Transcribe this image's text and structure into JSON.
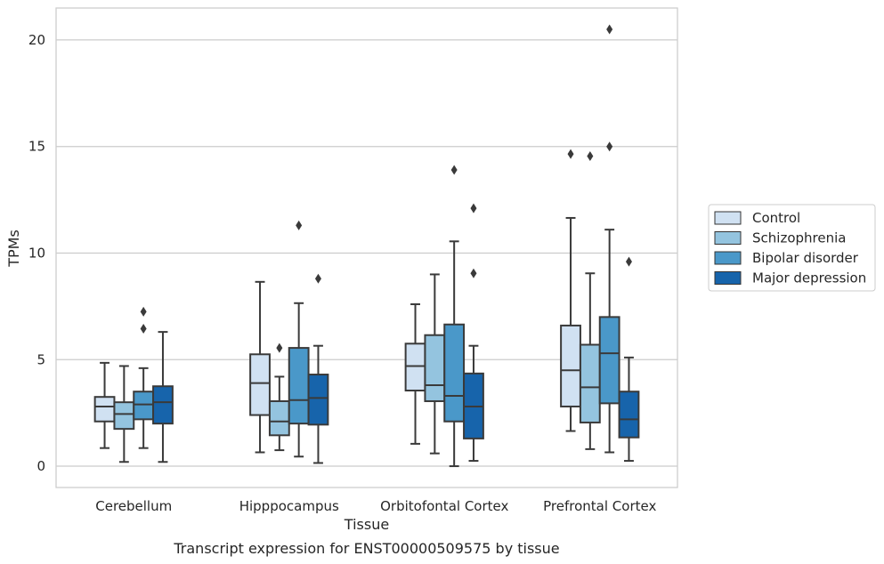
{
  "chart_data": {
    "type": "box",
    "title": "",
    "caption": "Transcript expression for ENST00000509575 by tissue",
    "xlabel": "Tissue",
    "ylabel": "TPMs",
    "ylim": [
      -1,
      21.5
    ],
    "yticks": [
      0,
      5,
      10,
      15,
      20
    ],
    "grid": "horizontal",
    "legend_position": "right",
    "categories": [
      "Cerebellum",
      "Hipppocampus",
      "Orbitofontal Cortex",
      "Prefrontal Cortex"
    ],
    "series": [
      {
        "name": "Control",
        "color": "#d0e1f2",
        "boxes": [
          {
            "whislo": 0.85,
            "q1": 2.1,
            "med": 2.8,
            "q3": 3.25,
            "whishi": 4.85,
            "fliers": []
          },
          {
            "whislo": 0.65,
            "q1": 2.4,
            "med": 3.9,
            "q3": 5.25,
            "whishi": 8.65,
            "fliers": []
          },
          {
            "whislo": 1.05,
            "q1": 3.55,
            "med": 4.7,
            "q3": 5.75,
            "whishi": 7.6,
            "fliers": []
          },
          {
            "whislo": 1.65,
            "q1": 2.8,
            "med": 4.5,
            "q3": 6.6,
            "whishi": 11.65,
            "fliers": [
              14.65
            ]
          }
        ]
      },
      {
        "name": "Schizophrenia",
        "color": "#94c4df",
        "boxes": [
          {
            "whislo": 0.2,
            "q1": 1.75,
            "med": 2.45,
            "q3": 3.0,
            "whishi": 4.7,
            "fliers": []
          },
          {
            "whislo": 0.75,
            "q1": 1.45,
            "med": 2.1,
            "q3": 3.05,
            "whishi": 4.2,
            "fliers": [
              5.55
            ]
          },
          {
            "whislo": 0.6,
            "q1": 3.05,
            "med": 3.8,
            "q3": 6.15,
            "whishi": 9.0,
            "fliers": []
          },
          {
            "whislo": 0.8,
            "q1": 2.05,
            "med": 3.7,
            "q3": 5.7,
            "whishi": 9.05,
            "fliers": [
              14.55
            ]
          }
        ]
      },
      {
        "name": "Bipolar disorder",
        "color": "#4a98c9",
        "boxes": [
          {
            "whislo": 0.85,
            "q1": 2.2,
            "med": 2.9,
            "q3": 3.5,
            "whishi": 4.6,
            "fliers": [
              6.45,
              7.25
            ]
          },
          {
            "whislo": 0.45,
            "q1": 2.0,
            "med": 3.1,
            "q3": 5.55,
            "whishi": 7.65,
            "fliers": [
              11.3
            ]
          },
          {
            "whislo": 0.0,
            "q1": 2.1,
            "med": 3.3,
            "q3": 6.65,
            "whishi": 10.55,
            "fliers": [
              13.9
            ]
          },
          {
            "whislo": 0.65,
            "q1": 2.95,
            "med": 5.3,
            "q3": 7.0,
            "whishi": 11.1,
            "fliers": [
              15.0,
              20.5
            ]
          }
        ]
      },
      {
        "name": "Major depression",
        "color": "#1764ab",
        "boxes": [
          {
            "whislo": 0.2,
            "q1": 2.0,
            "med": 3.0,
            "q3": 3.75,
            "whishi": 6.3,
            "fliers": []
          },
          {
            "whislo": 0.15,
            "q1": 1.95,
            "med": 3.2,
            "q3": 4.3,
            "whishi": 5.65,
            "fliers": [
              8.8
            ]
          },
          {
            "whislo": 0.25,
            "q1": 1.3,
            "med": 2.8,
            "q3": 4.35,
            "whishi": 5.65,
            "fliers": [
              9.05,
              12.1
            ]
          },
          {
            "whislo": 0.25,
            "q1": 1.35,
            "med": 2.2,
            "q3": 3.5,
            "whishi": 5.1,
            "fliers": [
              9.6
            ]
          }
        ]
      }
    ]
  }
}
